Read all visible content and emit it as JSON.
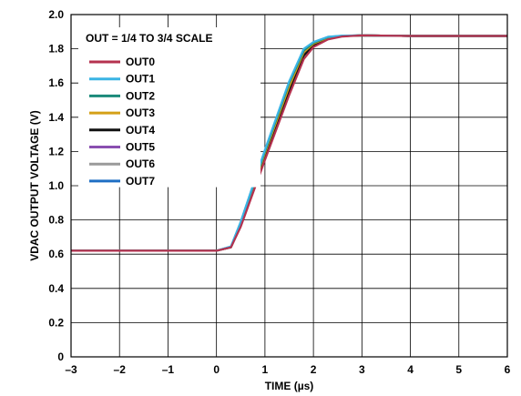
{
  "chart_data": {
    "type": "line",
    "title": "",
    "xlabel": "TIME (µs)",
    "ylabel": "VDAC OUTPUT VOLTAGE (V)",
    "xlim": [
      -3,
      6
    ],
    "ylim": [
      0,
      2.0
    ],
    "xticks": [
      -3,
      -2,
      -1,
      0,
      1,
      2,
      3,
      4,
      5,
      6
    ],
    "xtick_labels": [
      "–3",
      "–2",
      "–1",
      "0",
      "1",
      "2",
      "3",
      "4",
      "5",
      "6"
    ],
    "yticks": [
      0,
      0.2,
      0.4,
      0.6,
      0.8,
      1.0,
      1.2,
      1.4,
      1.6,
      1.8,
      2.0
    ],
    "ytick_labels": [
      "0",
      "0.2",
      "0.4",
      "0.6",
      "0.8",
      "1.0",
      "1.2",
      "1.4",
      "1.6",
      "1.8",
      "2.0"
    ],
    "grid": true,
    "legend_title": "OUT = 1/4 TO 3/4 SCALE",
    "legend_position": "top-left",
    "series": [
      {
        "name": "OUT0",
        "color": "#b5324f",
        "x": [
          -3,
          0,
          0.3,
          0.5,
          1,
          1.5,
          1.8,
          2,
          2.3,
          2.6,
          3,
          4,
          5,
          6
        ],
        "values": [
          0.62,
          0.62,
          0.64,
          0.76,
          1.15,
          1.53,
          1.74,
          1.81,
          1.855,
          1.872,
          1.878,
          1.875,
          1.875,
          1.875
        ]
      },
      {
        "name": "OUT1",
        "color": "#3ab4e4",
        "x": [
          -3,
          0,
          0.3,
          0.5,
          1,
          1.5,
          1.8,
          2,
          2.3,
          2.6,
          3,
          4,
          5,
          6
        ],
        "values": [
          0.62,
          0.62,
          0.645,
          0.79,
          1.21,
          1.61,
          1.8,
          1.84,
          1.87,
          1.877,
          1.878,
          1.875,
          1.875,
          1.875
        ]
      },
      {
        "name": "OUT2",
        "color": "#1a8a7a",
        "x": [
          -3,
          0,
          0.3,
          0.5,
          1,
          1.5,
          1.8,
          2,
          2.3,
          2.6,
          3,
          4,
          5,
          6
        ],
        "values": [
          0.62,
          0.62,
          0.643,
          0.785,
          1.2,
          1.6,
          1.79,
          1.835,
          1.868,
          1.876,
          1.878,
          1.875,
          1.875,
          1.875
        ]
      },
      {
        "name": "OUT3",
        "color": "#d4a017",
        "x": [
          -3,
          0,
          0.3,
          0.5,
          1,
          1.5,
          1.8,
          2,
          2.3,
          2.6,
          3,
          4,
          5,
          6
        ],
        "values": [
          0.62,
          0.62,
          0.642,
          0.78,
          1.19,
          1.58,
          1.78,
          1.83,
          1.865,
          1.875,
          1.878,
          1.875,
          1.875,
          1.875
        ]
      },
      {
        "name": "OUT4",
        "color": "#111111",
        "x": [
          -3,
          0,
          0.3,
          0.5,
          1,
          1.5,
          1.8,
          2,
          2.3,
          2.6,
          3,
          4,
          5,
          6
        ],
        "values": [
          0.62,
          0.62,
          0.64,
          0.77,
          1.17,
          1.55,
          1.76,
          1.82,
          1.86,
          1.874,
          1.878,
          1.875,
          1.875,
          1.875
        ]
      },
      {
        "name": "OUT5",
        "color": "#8a4fb0",
        "x": [
          -3,
          0,
          0.3,
          0.5,
          1,
          1.5,
          1.8,
          2,
          2.3,
          2.6,
          3,
          4,
          5,
          6
        ],
        "values": [
          0.62,
          0.62,
          0.641,
          0.775,
          1.18,
          1.57,
          1.77,
          1.825,
          1.862,
          1.874,
          1.878,
          1.875,
          1.875,
          1.875
        ]
      },
      {
        "name": "OUT6",
        "color": "#9a9a9a",
        "x": [
          -3,
          0,
          0.3,
          0.5,
          1,
          1.5,
          1.8,
          2,
          2.3,
          2.6,
          3,
          4,
          5,
          6
        ],
        "values": [
          0.62,
          0.62,
          0.643,
          0.78,
          1.19,
          1.59,
          1.785,
          1.832,
          1.866,
          1.875,
          1.878,
          1.875,
          1.875,
          1.875
        ]
      },
      {
        "name": "OUT7",
        "color": "#1f6fc4",
        "x": [
          -3,
          0,
          0.3,
          0.5,
          1,
          1.5,
          1.8,
          2,
          2.3,
          2.6,
          3,
          4,
          5,
          6
        ],
        "values": [
          0.62,
          0.62,
          0.644,
          0.788,
          1.205,
          1.605,
          1.795,
          1.838,
          1.869,
          1.876,
          1.878,
          1.875,
          1.875,
          1.875
        ]
      }
    ]
  }
}
